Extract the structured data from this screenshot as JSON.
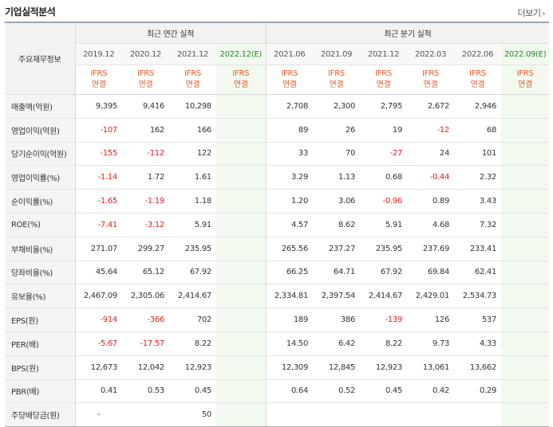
{
  "title": "기업실적분석",
  "more_label": "더보기",
  "header": {
    "row_label": "주요재무정보",
    "annual_title": "최근 연간 실적",
    "quarter_title": "최근 분기 실적",
    "annual_periods": [
      "2019.12",
      "2020.12",
      "2021.12",
      "2022.12(E)"
    ],
    "quarter_periods": [
      "2021.06",
      "2021.09",
      "2021.12",
      "2022.03",
      "2022.06",
      "2022.09(E)"
    ],
    "ifrs_line1": "IFRS",
    "ifrs_line2": "연결"
  },
  "rows": [
    {
      "label": "매출액(억원)",
      "annual": [
        "9,395",
        "9,416",
        "10,298",
        ""
      ],
      "quarter": [
        "2,708",
        "2,300",
        "2,795",
        "2,672",
        "2,946",
        ""
      ]
    },
    {
      "label": "영업이익(억원)",
      "annual": [
        "-107",
        "162",
        "166",
        ""
      ],
      "quarter": [
        "89",
        "26",
        "19",
        "-12",
        "68",
        ""
      ]
    },
    {
      "label": "당기순이익(억원)",
      "annual": [
        "-155",
        "-112",
        "122",
        ""
      ],
      "quarter": [
        "33",
        "70",
        "-27",
        "24",
        "101",
        ""
      ]
    },
    {
      "label": "영업이익률(%)",
      "annual": [
        "-1.14",
        "1.72",
        "1.61",
        ""
      ],
      "quarter": [
        "3.29",
        "1.13",
        "0.68",
        "-0.44",
        "2.32",
        ""
      ]
    },
    {
      "label": "순이익률(%)",
      "annual": [
        "-1.65",
        "-1.19",
        "1.18",
        ""
      ],
      "quarter": [
        "1.20",
        "3.06",
        "-0.96",
        "0.89",
        "3.43",
        ""
      ]
    },
    {
      "label": "ROE(%)",
      "annual": [
        "-7.41",
        "-3.12",
        "5.91",
        ""
      ],
      "quarter": [
        "4.57",
        "8.62",
        "5.91",
        "4.68",
        "7.32",
        ""
      ]
    },
    {
      "label": "부채비율(%)",
      "annual": [
        "271.07",
        "299.27",
        "235.95",
        ""
      ],
      "quarter": [
        "265.56",
        "237.27",
        "235.95",
        "237.69",
        "233.41",
        ""
      ]
    },
    {
      "label": "당좌비율(%)",
      "annual": [
        "45.64",
        "65.12",
        "67.92",
        ""
      ],
      "quarter": [
        "66.25",
        "64.71",
        "67.92",
        "69.84",
        "62.41",
        ""
      ]
    },
    {
      "label": "유보율(%)",
      "annual": [
        "2,467.09",
        "2,305.06",
        "2,414.67",
        ""
      ],
      "quarter": [
        "2,334.81",
        "2,397.54",
        "2,414.67",
        "2,429.01",
        "2,534.73",
        ""
      ]
    },
    {
      "label": "EPS(원)",
      "annual": [
        "-914",
        "-366",
        "702",
        ""
      ],
      "quarter": [
        "189",
        "386",
        "-139",
        "126",
        "537",
        ""
      ]
    },
    {
      "label": "PER(배)",
      "annual": [
        "-5.67",
        "-17.57",
        "8.22",
        ""
      ],
      "quarter": [
        "14.50",
        "6.42",
        "8.22",
        "9.73",
        "4.33",
        ""
      ]
    },
    {
      "label": "BPS(원)",
      "annual": [
        "12,673",
        "12,042",
        "12,923",
        ""
      ],
      "quarter": [
        "12,309",
        "12,845",
        "12,923",
        "13,061",
        "13,662",
        ""
      ]
    },
    {
      "label": "PBR(배)",
      "annual": [
        "0.41",
        "0.53",
        "0.45",
        ""
      ],
      "quarter": [
        "0.64",
        "0.52",
        "0.45",
        "0.42",
        "0.29",
        ""
      ]
    },
    {
      "label": "주당배당금(원)",
      "annual": [
        "-",
        "",
        "50",
        ""
      ],
      "quarter": [
        "",
        "",
        "",
        "",
        "",
        ""
      ]
    }
  ],
  "colors": {
    "negative": "#e02020",
    "ifrs": "#e8581e",
    "estimate_bg": "#f2faf0",
    "estimate_text": "#1f8a1f"
  }
}
